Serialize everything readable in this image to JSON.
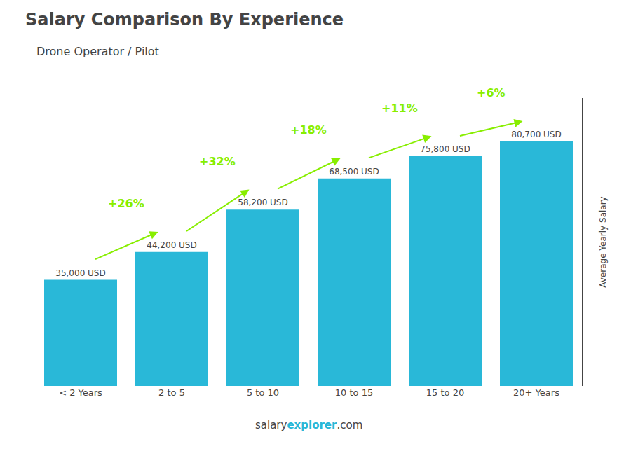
{
  "chart_data": {
    "type": "bar",
    "title": "Salary Comparison By Experience",
    "subtitle": "Drone Operator / Pilot",
    "categories": [
      "< 2 Years",
      "2 to 5",
      "5 to 10",
      "10 to 15",
      "15 to 20",
      "20+ Years"
    ],
    "values": [
      35000,
      44200,
      58200,
      68500,
      75800,
      80700
    ],
    "value_labels": [
      "35,000 USD",
      "44,200 USD",
      "58,200 USD",
      "68,500 USD",
      "75,800 USD",
      "80,700 USD"
    ],
    "data_labels": true,
    "color": "#29b8d8",
    "ylabel": "Average Yearly Salary",
    "ylim": [
      0,
      95000
    ],
    "tick_labels": "x",
    "grid": false,
    "annotations": [
      {
        "text": "+26%",
        "color": "#88ee00"
      },
      {
        "text": "+32%",
        "color": "#88ee00"
      },
      {
        "text": "+18%",
        "color": "#88ee00"
      },
      {
        "text": "+11%",
        "color": "#88ee00"
      },
      {
        "text": "+6%",
        "color": "#88ee00"
      }
    ],
    "footer": [
      "salary",
      "explorer",
      ".com"
    ]
  }
}
